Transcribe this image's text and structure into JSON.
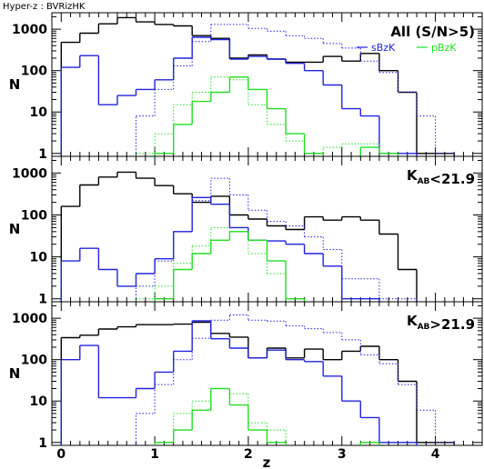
{
  "chart_data": {
    "type": "line",
    "title": "Hyper-z : BVRizHK",
    "xlabel": "z",
    "ylabel": "N",
    "xlim": [
      -0.1,
      4.5
    ],
    "ylim": [
      0.85,
      2500
    ],
    "yscale": "log",
    "xticks": [
      "0",
      "1",
      "2",
      "3",
      "4"
    ],
    "yticks": [
      "1",
      "10",
      "100",
      "1000"
    ],
    "bin_edges": [
      0,
      0.2,
      0.4,
      0.6,
      0.8,
      1.0,
      1.2,
      1.4,
      1.6,
      1.8,
      2.0,
      2.2,
      2.4,
      2.6,
      2.8,
      3.0,
      3.2,
      3.4,
      3.6,
      3.8,
      4.0,
      4.2
    ],
    "colors": {
      "all": "#000000",
      "sbzk": "#2222dd",
      "pbzk": "#22dd22"
    },
    "panels": [
      {
        "label": "All (S/N>5)",
        "legend": [
          {
            "name": "sBzK",
            "color": "#2222dd"
          },
          {
            "name": "pBzK",
            "color": "#22dd22"
          }
        ],
        "series": [
          {
            "key": "all",
            "style": "solid",
            "values": [
              480,
              800,
              1350,
              1900,
              1500,
              1300,
              1200,
              700,
              600,
              200,
              240,
              190,
              160,
              160,
              220,
              170,
              260,
              100,
              30,
              1,
              1
            ]
          },
          {
            "key": "sbzk",
            "style": "solid",
            "values": [
              120,
              230,
              15,
              25,
              35,
              60,
              200,
              640,
              560,
              190,
              220,
              190,
              150,
              100,
              45,
              12,
              8,
              1,
              1,
              0,
              0
            ]
          },
          {
            "key": "sbzk",
            "style": "dotted",
            "values": [
              0,
              0,
              0,
              0,
              8,
              35,
              130,
              500,
              1300,
              1300,
              1050,
              900,
              700,
              600,
              450,
              350,
              170,
              90,
              30,
              8,
              1
            ]
          },
          {
            "key": "pbzk",
            "style": "solid",
            "values": [
              0,
              0,
              0,
              0,
              0,
              1,
              5,
              18,
              30,
              70,
              35,
              12,
              3,
              1,
              0,
              0,
              1.4,
              1,
              0,
              0,
              0
            ]
          },
          {
            "key": "pbzk",
            "style": "dotted",
            "values": [
              0,
              0,
              0,
              0,
              1,
              3,
              15,
              30,
              70,
              60,
              15,
              5,
              2,
              1,
              1.4,
              1.7,
              1.7,
              1,
              0,
              0,
              0
            ]
          }
        ]
      },
      {
        "label": "K_AB<21.9",
        "legend": [],
        "series": [
          {
            "key": "all",
            "style": "solid",
            "values": [
              160,
              520,
              800,
              1050,
              750,
              500,
              320,
              200,
              280,
              100,
              80,
              55,
              45,
              90,
              75,
              90,
              75,
              35,
              5,
              0,
              0
            ]
          },
          {
            "key": "sbzk",
            "style": "solid",
            "values": [
              8,
              16,
              5,
              2,
              4,
              9,
              40,
              260,
              180,
              50,
              25,
              24,
              20,
              12,
              6,
              1,
              1,
              0,
              0,
              0,
              0
            ]
          },
          {
            "key": "sbzk",
            "style": "dotted",
            "values": [
              0,
              0,
              0,
              0,
              2,
              8,
              40,
              220,
              750,
              300,
              130,
              70,
              55,
              30,
              15,
              3,
              3,
              1,
              1,
              0,
              0
            ]
          },
          {
            "key": "pbzk",
            "style": "solid",
            "values": [
              0,
              0,
              0,
              0,
              0,
              1,
              5,
              12,
              25,
              40,
              25,
              8,
              1,
              0,
              0,
              0,
              0,
              0,
              0,
              0,
              0
            ]
          },
          {
            "key": "pbzk",
            "style": "dotted",
            "values": [
              0,
              0,
              0,
              0,
              1,
              2,
              7,
              18,
              50,
              40,
              12,
              4,
              0,
              0,
              0,
              0,
              0,
              0,
              0,
              0,
              0
            ]
          }
        ]
      },
      {
        "label": "K_AB>21.9",
        "legend": [],
        "series": [
          {
            "key": "all",
            "style": "solid",
            "values": [
              340,
              390,
              550,
              620,
              700,
              700,
              720,
              800,
              430,
              350,
              110,
              190,
              110,
              180,
              100,
              160,
              210,
              100,
              30,
              1,
              1
            ]
          },
          {
            "key": "sbzk",
            "style": "solid",
            "values": [
              100,
              220,
              12,
              12,
              20,
              50,
              160,
              870,
              320,
              190,
              110,
              170,
              100,
              90,
              40,
              10,
              4,
              1,
              1,
              0,
              0
            ]
          },
          {
            "key": "sbzk",
            "style": "dotted",
            "values": [
              0,
              0,
              0,
              0,
              5,
              25,
              100,
              330,
              900,
              1200,
              900,
              850,
              650,
              560,
              450,
              300,
              130,
              80,
              25,
              6,
              1
            ]
          },
          {
            "key": "pbzk",
            "style": "solid",
            "values": [
              0,
              0,
              0,
              0,
              0,
              1,
              2,
              6,
              20,
              8,
              2,
              1,
              0,
              0,
              0,
              0,
              1,
              0,
              0,
              0,
              0
            ]
          },
          {
            "key": "pbzk",
            "style": "dotted",
            "values": [
              0,
              0,
              0,
              0,
              0,
              1,
              5,
              10,
              20,
              15,
              3,
              2,
              0,
              0,
              0,
              0,
              1,
              0,
              0,
              0,
              0
            ]
          }
        ]
      }
    ]
  }
}
